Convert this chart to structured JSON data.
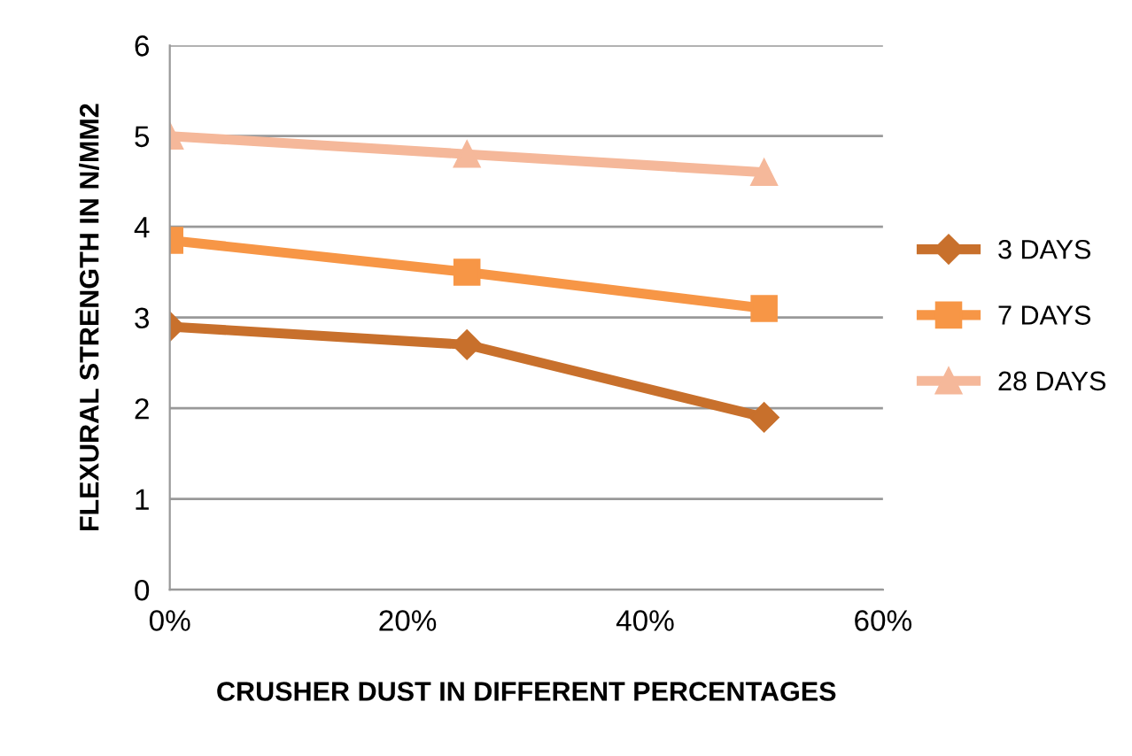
{
  "chart_data": {
    "type": "line",
    "xlabel": "CRUSHER DUST IN DIFFERENT PERCENTAGES",
    "ylabel": "FLEXURAL STRENGTH IN N/MM2",
    "x": [
      0,
      25,
      50
    ],
    "series": [
      {
        "name": "3 DAYS",
        "color": "#c8702c",
        "marker": "diamond",
        "values": [
          2.9,
          2.7,
          1.9
        ]
      },
      {
        "name": "7 DAYS",
        "color": "#f79646",
        "marker": "square",
        "values": [
          3.85,
          3.5,
          3.1
        ]
      },
      {
        "name": "28 DAYS",
        "color": "#f5b89a",
        "marker": "triangle",
        "values": [
          5.0,
          4.8,
          4.6
        ]
      }
    ],
    "xlim": [
      0,
      60
    ],
    "xticks": [
      {
        "value": 0,
        "label": "0%"
      },
      {
        "value": 20,
        "label": "20%"
      },
      {
        "value": 40,
        "label": "40%"
      },
      {
        "value": 60,
        "label": "60%"
      }
    ],
    "ylim": [
      0,
      6
    ],
    "yticks": [
      0,
      1,
      2,
      3,
      4,
      5,
      6
    ],
    "grid": "y",
    "legend": "right",
    "line_style": "solid"
  }
}
